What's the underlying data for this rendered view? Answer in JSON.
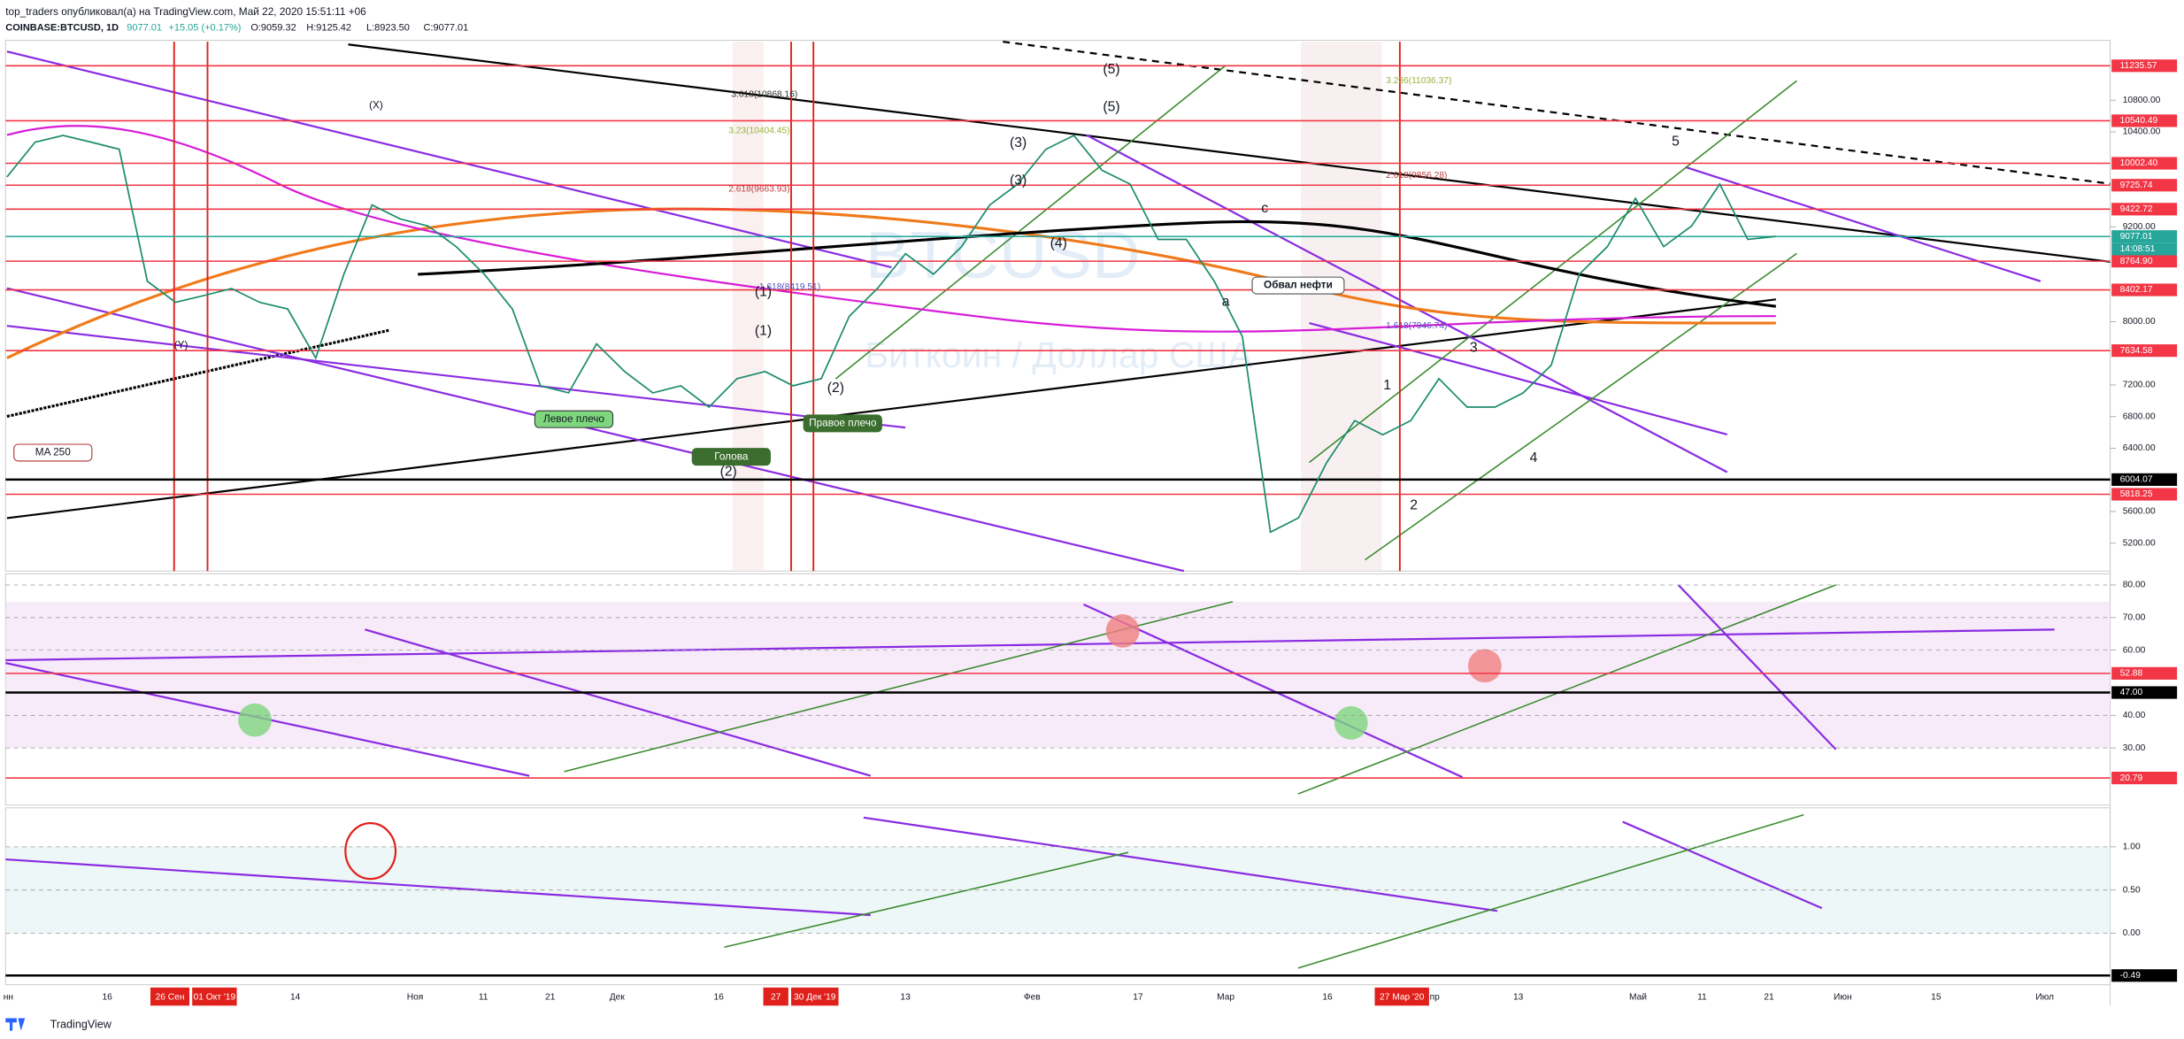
{
  "header": {
    "author_line": "top_traders опубликовал(а) на TradingView.com, Май 22, 2020 15:51:11 +06",
    "symbol": "COINBASE:BTCUSD, 1D",
    "last": "9077.01",
    "change": "+15.05 (+0.17%)",
    "open": "O:9059.32",
    "high": "H:9125.42",
    "low": "L:8923.50",
    "close": "C:9077.01"
  },
  "watermark": {
    "symbol": "BTCUSD",
    "name": "Биткоин / Доллар США"
  },
  "price_axis": {
    "ticks": [
      {
        "value": 10800,
        "label": "10800.00"
      },
      {
        "value": 10400,
        "label": "10400.00"
      },
      {
        "value": 9200,
        "label": "9200.00"
      },
      {
        "value": 8000,
        "label": "8000.00"
      },
      {
        "value": 7200,
        "label": "7200.00"
      },
      {
        "value": 6800,
        "label": "6800.00"
      },
      {
        "value": 6400,
        "label": "6400.00"
      },
      {
        "value": 5600,
        "label": "5600.00"
      },
      {
        "value": 5200,
        "label": "5200.00"
      }
    ],
    "markers": [
      {
        "value": 11235.57,
        "color": "#f23645"
      },
      {
        "value": 10540.49,
        "color": "#f23645"
      },
      {
        "value": 10002.4,
        "label": "10002.40",
        "color": "#f23645"
      },
      {
        "value": 9725.74,
        "color": "#f23645"
      },
      {
        "value": 9422.72,
        "color": "#f23645"
      },
      {
        "value": 9077.01,
        "color": "#26a69a"
      },
      {
        "value": 8764.9,
        "label": "8764.90",
        "color": "#f23645"
      },
      {
        "value": 8402.17,
        "color": "#f23645"
      },
      {
        "value": 7634.58,
        "color": "#f23645"
      },
      {
        "value": 6004.07,
        "color": "#000000"
      },
      {
        "value": 5818.25,
        "color": "#f23645"
      }
    ],
    "countdown": "14:08:51"
  },
  "closes": [
    9830,
    10270,
    10355,
    10270,
    10180,
    8510,
    8245,
    8330,
    8420,
    8245,
    8160,
    7540,
    8600,
    9475,
    9300,
    9210,
    8950,
    8600,
    8160,
    7190,
    7100,
    7720,
    7370,
    7100,
    7190,
    6920,
    7280,
    7370,
    7190,
    7280,
    8070,
    8420,
    8860,
    8600,
    8950,
    9475,
    9740,
    10180,
    10355,
    9915,
    9740,
    9040,
    9040,
    8510,
    7810,
    5340,
    5520,
    6220,
    6750,
    6570,
    6750,
    7280,
    6920,
    6920,
    7100,
    7450,
    8600,
    8950,
    9560,
    8950,
    9210,
    9740,
    9040,
    9077.01
  ],
  "rsi_axis": {
    "ticks": [
      {
        "value": 80,
        "label": "80.00"
      },
      {
        "value": 70,
        "label": "70.00"
      },
      {
        "value": 60,
        "label": "60.00"
      },
      {
        "value": 40,
        "label": "40.00"
      },
      {
        "value": 30,
        "label": "30.00"
      }
    ],
    "markers": [
      {
        "value": 52.88,
        "color": "#f23645"
      },
      {
        "value": 47,
        "label": "47.00",
        "color": "#000000"
      },
      {
        "value": 20.79,
        "color": "#f23645"
      }
    ]
  },
  "osc_axis": {
    "ticks": [
      {
        "value": 1,
        "label": "1.00"
      },
      {
        "value": 0.5,
        "label": "0.50"
      },
      {
        "value": 0,
        "label": "0.00"
      }
    ],
    "markers": [
      {
        "value": -0.49,
        "color": "#000000"
      }
    ]
  },
  "time_axis": {
    "labels": [
      "нн",
      "16",
      "14",
      "Ноя",
      "11",
      "21",
      "Дек",
      "16",
      "13",
      "Фев",
      "17",
      "Мар",
      "16",
      "пр",
      "13",
      "Май",
      "11",
      "21",
      "Июн",
      "15",
      "Июл"
    ],
    "highlights": [
      "26 Сен",
      "01 Окт '19",
      "27",
      "30 Дек '19",
      "27 Мар '20"
    ]
  },
  "annotations": [
    "(X)",
    "(Y)",
    "MA 250",
    "Левое плечо",
    "Голова",
    "Правое плечо",
    "Обвал нефти",
    "(1)",
    "(1)",
    "(2)",
    "(2)",
    "(3)",
    "(3)",
    "(4)",
    "(5)",
    "(5)",
    "5",
    "3",
    "1",
    "2",
    "4",
    "a",
    "c"
  ],
  "fib_labels": [
    "3.618(10868.16)",
    "3.23(10404.45)",
    "2.618(9663.93)",
    "1.618(8419.51)",
    "3.236(11036.37)",
    "2.618(9856.28)",
    "1.618(7946.74)"
  ],
  "footer": "TradingView"
}
